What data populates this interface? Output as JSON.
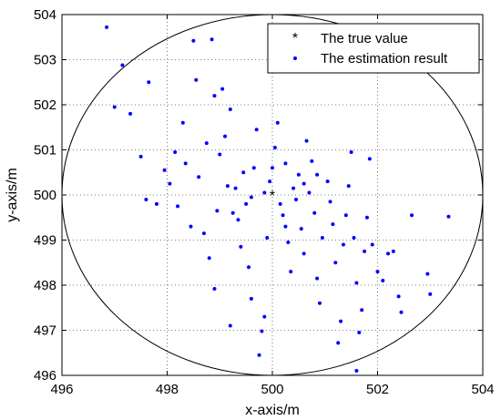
{
  "chart_data": {
    "type": "scatter",
    "xlabel": "x-axis/m",
    "ylabel": "y-axis/m",
    "xlim": [
      496,
      504
    ],
    "ylim": [
      496,
      504
    ],
    "x_ticks": [
      496,
      498,
      500,
      502,
      504
    ],
    "y_ticks": [
      496,
      497,
      498,
      499,
      500,
      501,
      502,
      503,
      504
    ],
    "grid": true,
    "grid_style": "dotted",
    "legend_position": "top-right",
    "circle": {
      "center": [
        500,
        500
      ],
      "radius": 4
    },
    "series": [
      {
        "name": "The true value",
        "marker": "asterisk",
        "color": "#ff0000",
        "points": [
          [
            500.0,
            500.0
          ]
        ]
      },
      {
        "name": "The estimation result",
        "marker": "dot",
        "color": "#0000ff",
        "points": [
          [
            496.85,
            503.72
          ],
          [
            497.15,
            502.88
          ],
          [
            497.0,
            501.95
          ],
          [
            497.3,
            501.8
          ],
          [
            497.65,
            502.5
          ],
          [
            497.5,
            500.85
          ],
          [
            497.6,
            499.9
          ],
          [
            497.8,
            499.8
          ],
          [
            497.95,
            500.55
          ],
          [
            498.05,
            500.25
          ],
          [
            498.5,
            503.42
          ],
          [
            498.85,
            503.45
          ],
          [
            498.55,
            502.55
          ],
          [
            498.9,
            502.2
          ],
          [
            498.3,
            501.6
          ],
          [
            498.35,
            500.7
          ],
          [
            498.2,
            499.75
          ],
          [
            498.15,
            500.95
          ],
          [
            498.6,
            500.4
          ],
          [
            498.75,
            501.15
          ],
          [
            498.45,
            499.3
          ],
          [
            498.7,
            499.15
          ],
          [
            498.8,
            498.6
          ],
          [
            498.95,
            499.65
          ],
          [
            499.0,
            500.9
          ],
          [
            499.1,
            501.3
          ],
          [
            499.2,
            501.9
          ],
          [
            499.05,
            502.35
          ],
          [
            499.3,
            500.15
          ],
          [
            499.35,
            499.45
          ],
          [
            499.4,
            498.85
          ],
          [
            499.55,
            498.4
          ],
          [
            499.6,
            497.7
          ],
          [
            499.8,
            496.98
          ],
          [
            499.85,
            497.3
          ],
          [
            499.5,
            499.8
          ],
          [
            499.65,
            500.6
          ],
          [
            499.7,
            501.45
          ],
          [
            499.9,
            499.05
          ],
          [
            499.95,
            500.3
          ],
          [
            500.05,
            501.05
          ],
          [
            500.1,
            501.6
          ],
          [
            500.2,
            499.55
          ],
          [
            500.25,
            500.7
          ],
          [
            500.3,
            498.95
          ],
          [
            500.35,
            498.3
          ],
          [
            500.45,
            499.9
          ],
          [
            500.5,
            500.45
          ],
          [
            500.55,
            499.25
          ],
          [
            500.6,
            498.7
          ],
          [
            500.65,
            501.2
          ],
          [
            500.7,
            500.05
          ],
          [
            500.8,
            499.6
          ],
          [
            500.85,
            498.15
          ],
          [
            500.9,
            497.6
          ],
          [
            500.95,
            499.05
          ],
          [
            501.05,
            500.3
          ],
          [
            501.1,
            499.85
          ],
          [
            501.15,
            499.35
          ],
          [
            501.2,
            498.5
          ],
          [
            501.3,
            497.2
          ],
          [
            501.35,
            498.9
          ],
          [
            501.4,
            499.55
          ],
          [
            501.45,
            500.2
          ],
          [
            501.5,
            500.95
          ],
          [
            501.55,
            499.05
          ],
          [
            501.6,
            498.05
          ],
          [
            501.65,
            496.95
          ],
          [
            501.7,
            497.45
          ],
          [
            501.75,
            498.75
          ],
          [
            501.8,
            499.5
          ],
          [
            501.85,
            500.8
          ],
          [
            501.9,
            498.9
          ],
          [
            502.0,
            498.3
          ],
          [
            502.1,
            498.1
          ],
          [
            502.2,
            498.7
          ],
          [
            502.3,
            498.75
          ],
          [
            502.4,
            497.75
          ],
          [
            502.45,
            497.4
          ],
          [
            502.65,
            499.55
          ],
          [
            502.95,
            498.25
          ],
          [
            503.0,
            497.8
          ],
          [
            503.35,
            499.52
          ],
          [
            501.6,
            496.1
          ],
          [
            501.25,
            496.72
          ],
          [
            499.75,
            496.45
          ],
          [
            499.2,
            497.1
          ],
          [
            498.9,
            497.92
          ],
          [
            500.15,
            499.8
          ],
          [
            500.0,
            500.6
          ],
          [
            499.85,
            500.05
          ],
          [
            500.4,
            500.15
          ],
          [
            499.6,
            499.95
          ],
          [
            500.25,
            499.3
          ],
          [
            499.45,
            500.5
          ],
          [
            500.75,
            500.75
          ],
          [
            499.25,
            499.6
          ],
          [
            500.6,
            500.25
          ],
          [
            499.15,
            500.2
          ],
          [
            500.85,
            500.45
          ]
        ]
      }
    ]
  }
}
